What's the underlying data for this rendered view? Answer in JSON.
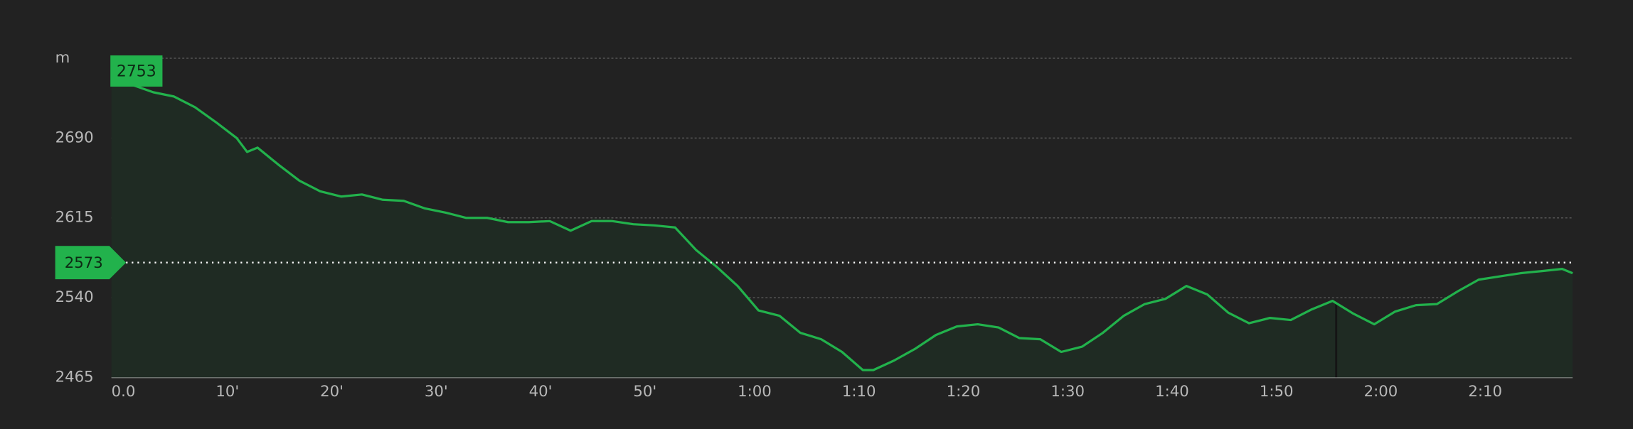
{
  "chart_data": {
    "type": "area",
    "y_label": "m",
    "color": "#22b24c",
    "fill": "#1f2b23",
    "xlim": [
      0,
      140
    ],
    "ylim": [
      2465,
      2765
    ],
    "xticks": [
      {
        "value": 0,
        "label": "0.0"
      },
      {
        "value": 10,
        "label": "10'"
      },
      {
        "value": 20,
        "label": "20'"
      },
      {
        "value": 30,
        "label": "30'"
      },
      {
        "value": 40,
        "label": "40'"
      },
      {
        "value": 50,
        "label": "50'"
      },
      {
        "value": 60,
        "label": "1:00"
      },
      {
        "value": 70,
        "label": "1:10"
      },
      {
        "value": 80,
        "label": "1:20"
      },
      {
        "value": 90,
        "label": "1:30"
      },
      {
        "value": 100,
        "label": "1:40"
      },
      {
        "value": 110,
        "label": "1:50"
      },
      {
        "value": 120,
        "label": "2:00"
      },
      {
        "value": 130,
        "label": "2:10"
      }
    ],
    "yticks": [
      2465,
      2540,
      2615,
      2690
    ],
    "grid": true,
    "max_marker": 2753,
    "current_marker": 2573,
    "x": [
      0,
      2,
      4,
      6,
      8,
      10,
      12,
      13,
      14,
      16,
      18,
      20,
      22,
      24,
      26,
      28,
      30,
      32,
      34,
      36,
      38,
      40,
      42,
      44,
      46,
      48,
      50,
      52,
      54,
      56,
      58,
      60,
      62,
      64,
      66,
      68,
      70,
      72,
      73,
      75,
      77,
      79,
      81,
      83,
      85,
      87,
      89,
      91,
      93,
      95,
      97,
      99,
      101,
      103,
      105,
      107,
      109,
      111,
      113,
      115,
      117,
      119,
      121,
      123,
      125,
      127,
      129,
      131,
      133,
      135,
      137,
      139,
      140
    ],
    "values": [
      2745,
      2740,
      2733,
      2729,
      2719,
      2705,
      2690,
      2677,
      2681,
      2665,
      2650,
      2640,
      2635,
      2637,
      2632,
      2631,
      2624,
      2620,
      2615,
      2615,
      2611,
      2611,
      2612,
      2603,
      2612,
      2612,
      2609,
      2608,
      2606,
      2585,
      2569,
      2551,
      2528,
      2523,
      2507,
      2501,
      2489,
      2472,
      2472,
      2481,
      2492,
      2505,
      2513,
      2515,
      2512,
      2502,
      2501,
      2489,
      2494,
      2507,
      2523,
      2534,
      2539,
      2551,
      2543,
      2526,
      2516,
      2521,
      2519,
      2529,
      2537,
      2525,
      2515,
      2527,
      2533,
      2534,
      2546,
      2557,
      2560,
      2563,
      2565,
      2567,
      2563
    ]
  }
}
